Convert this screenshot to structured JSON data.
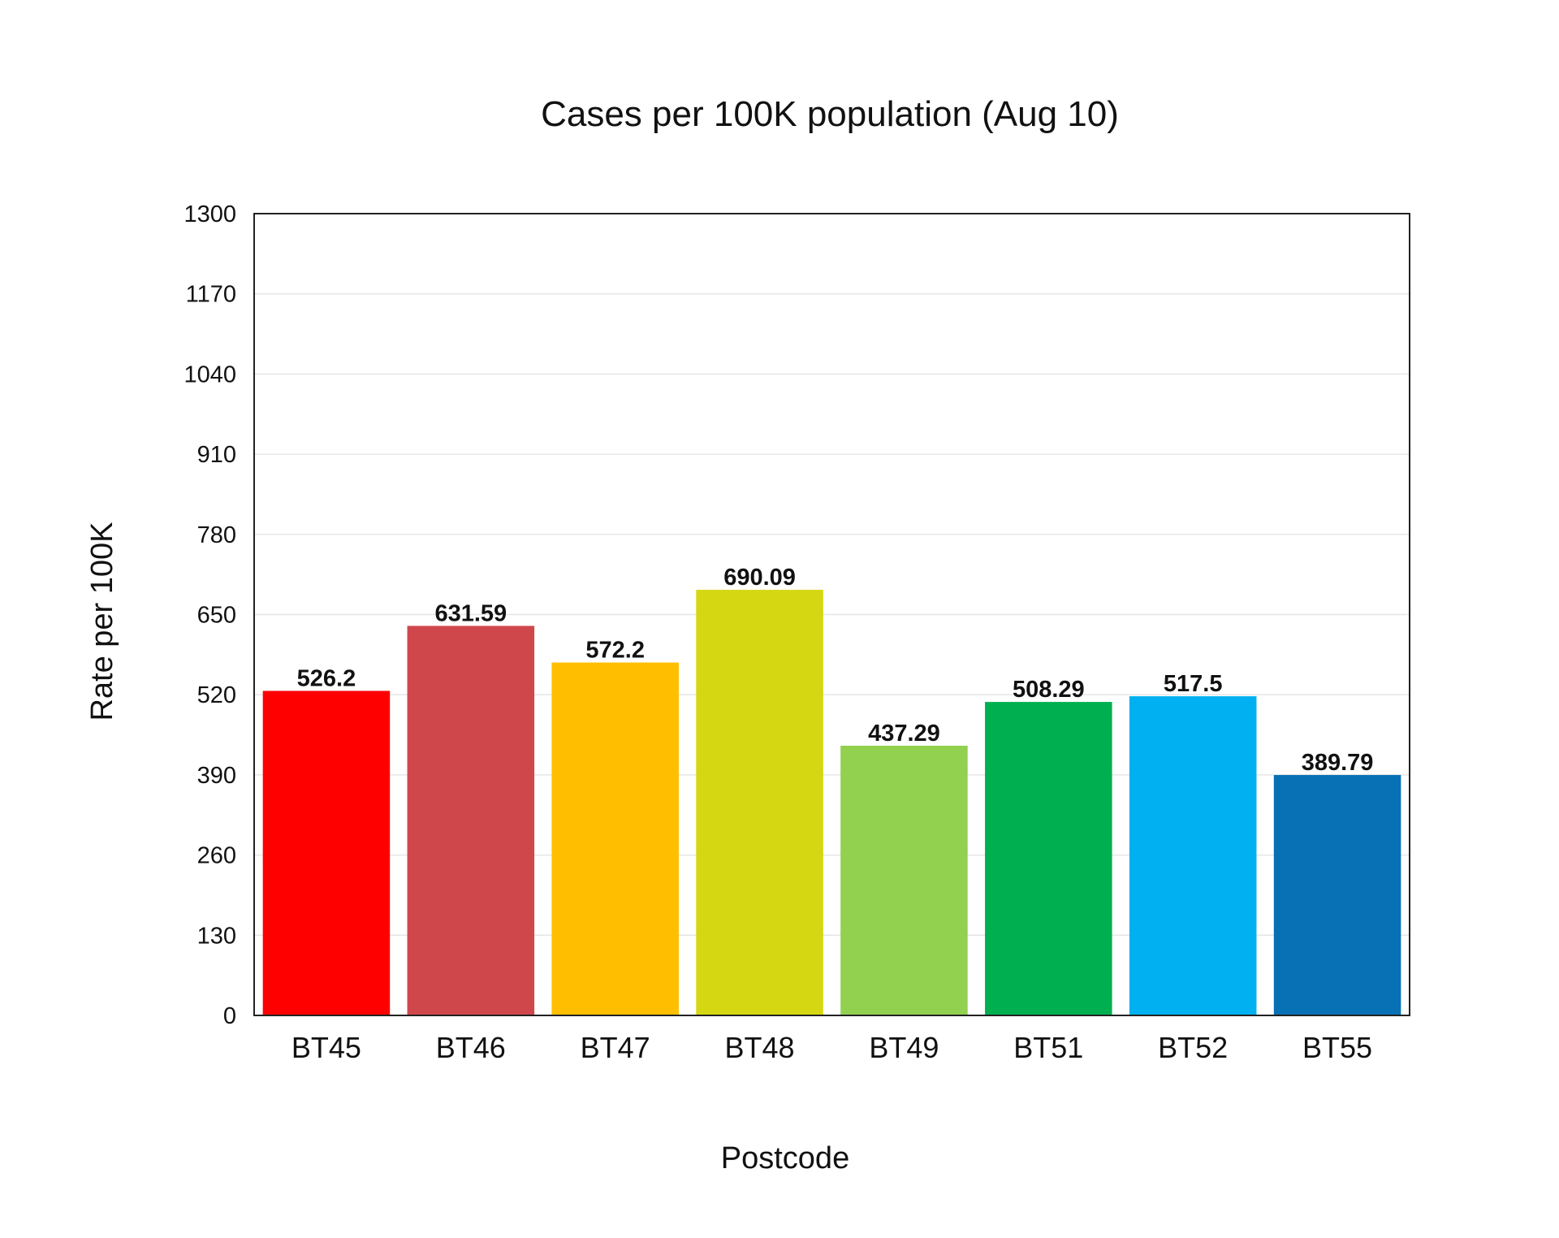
{
  "chart_data": {
    "type": "bar",
    "title": "Cases per 100K population (Aug 10)",
    "xlabel": "Postcode",
    "ylabel": "Rate per 100K",
    "categories": [
      "BT45",
      "BT46",
      "BT47",
      "BT48",
      "BT49",
      "BT51",
      "BT52",
      "BT55"
    ],
    "values": [
      526.2,
      631.59,
      572.2,
      690.09,
      437.29,
      508.29,
      517.5,
      389.79
    ],
    "value_labels": [
      "526.2",
      "631.59",
      "572.2",
      "690.09",
      "437.29",
      "508.29",
      "517.5",
      "389.79"
    ],
    "colors": [
      "#ff0000",
      "#d0474b",
      "#ffbf00",
      "#d4d712",
      "#92d050",
      "#00b050",
      "#00b0f0",
      "#0870b4"
    ],
    "ylim": [
      0,
      1300
    ],
    "yticks": [
      0,
      130,
      260,
      390,
      520,
      650,
      780,
      910,
      1040,
      1170,
      1300
    ],
    "ytick_labels": [
      "0",
      "130",
      "260",
      "390",
      "520",
      "650",
      "780",
      "910",
      "1040",
      "1170",
      "1300"
    ],
    "grid": true,
    "legend": "none"
  }
}
